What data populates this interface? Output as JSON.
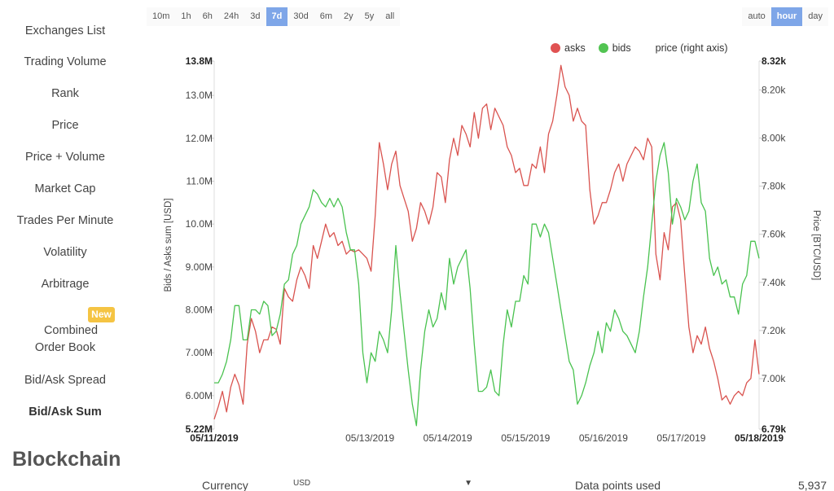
{
  "sidebar": {
    "items": [
      {
        "label": "Exchanges List"
      },
      {
        "label": "Trading Volume"
      },
      {
        "label": "Rank"
      },
      {
        "label": "Price"
      },
      {
        "label": "Price + Volume"
      },
      {
        "label": "Market Cap"
      },
      {
        "label": "Trades Per Minute"
      },
      {
        "label": "Volatility"
      },
      {
        "label": "Arbitrage"
      },
      {
        "label_line1": "Combined",
        "label_line2": "Order Book"
      },
      {
        "label": "Bid/Ask Spread"
      },
      {
        "label": "Bid/Ask Sum"
      }
    ],
    "new_badge": "New",
    "section_title": "Blockchain"
  },
  "ranges": [
    "10m",
    "1h",
    "6h",
    "24h",
    "3d",
    "7d",
    "30d",
    "6m",
    "2y",
    "5y",
    "all"
  ],
  "granularity": [
    "auto",
    "hour",
    "day"
  ],
  "controls": {
    "currency_label": "Currency",
    "currency_value": "USD",
    "points_label": "Data points used",
    "points_value": "5,937"
  },
  "colors": {
    "asks": "#d9534f",
    "bids": "#49c24f",
    "accent": "#7ea6e8"
  },
  "chart_data": {
    "type": "line",
    "ylabel": "Bids / Asks sum [USD]",
    "y2label": "Price [BTC/USD]",
    "x_ticks": [
      "05/11/2019",
      "05/13/2019",
      "05/14/2019",
      "05/15/2019",
      "05/16/2019",
      "05/17/2019",
      "05/18/2019"
    ],
    "y_ticks_left": [
      "13.8M",
      "13.0M",
      "12.0M",
      "11.0M",
      "10.0M",
      "9.00M",
      "8.00M",
      "7.00M",
      "6.00M",
      "5.22M"
    ],
    "y_ticks_right": [
      "8.32k",
      "8.20k",
      "8.00k",
      "7.80k",
      "7.60k",
      "7.40k",
      "7.20k",
      "7.00k",
      "6.79k"
    ],
    "ylim": [
      5.22,
      13.8
    ],
    "y2lim": [
      6.79,
      8.32
    ],
    "legend": {
      "position": "top-right",
      "entries": [
        "asks",
        "bids",
        "price (right axis)"
      ]
    },
    "series": [
      {
        "name": "asks",
        "values": [
          5.45,
          5.75,
          6.1,
          5.62,
          6.2,
          6.5,
          6.25,
          5.8,
          7.2,
          7.8,
          7.5,
          7.0,
          7.3,
          7.3,
          7.6,
          7.55,
          7.2,
          8.5,
          8.3,
          8.2,
          8.7,
          9.0,
          8.8,
          8.5,
          9.5,
          9.2,
          9.6,
          10.0,
          9.7,
          9.8,
          9.5,
          9.6,
          9.3,
          9.4,
          9.35,
          9.4,
          9.3,
          9.2,
          8.9,
          10.2,
          11.9,
          11.4,
          10.8,
          11.4,
          11.7,
          10.9,
          10.6,
          10.3,
          9.6,
          9.9,
          10.5,
          10.3,
          10.0,
          10.4,
          11.2,
          11.1,
          10.5,
          11.5,
          12.0,
          11.6,
          12.3,
          12.1,
          11.8,
          12.6,
          12.0,
          12.7,
          12.8,
          12.2,
          12.7,
          12.5,
          12.3,
          11.8,
          11.6,
          11.2,
          11.3,
          10.9,
          10.9,
          11.4,
          11.3,
          11.8,
          11.2,
          12.1,
          12.4,
          13.0,
          13.7,
          13.2,
          13.0,
          12.4,
          12.7,
          12.4,
          12.3,
          10.8,
          10.0,
          10.2,
          10.5,
          10.5,
          10.8,
          11.2,
          11.4,
          11.0,
          11.4,
          11.6,
          11.8,
          11.7,
          11.5,
          12.0,
          11.8,
          9.3,
          8.7,
          9.8,
          9.4,
          10.4,
          10.5,
          10.1,
          8.8,
          7.6,
          7.0,
          7.4,
          7.2,
          7.6,
          7.1,
          6.8,
          6.4,
          5.9,
          6.0,
          5.8,
          6.0,
          6.1,
          6.0,
          6.3,
          6.4,
          7.3,
          6.5
        ]
      },
      {
        "name": "bids",
        "values": [
          6.3,
          6.3,
          6.5,
          6.8,
          7.3,
          8.1,
          8.1,
          7.3,
          7.3,
          8.0,
          8.0,
          7.9,
          8.2,
          8.1,
          7.4,
          7.5,
          7.9,
          8.6,
          8.7,
          9.3,
          9.5,
          10.0,
          10.2,
          10.4,
          10.8,
          10.7,
          10.5,
          10.4,
          10.6,
          10.4,
          10.6,
          10.4,
          9.8,
          9.4,
          9.4,
          8.6,
          7.0,
          6.3,
          7.0,
          6.8,
          7.5,
          7.3,
          7.0,
          8.0,
          9.5,
          8.4,
          7.5,
          6.6,
          5.8,
          5.3,
          6.6,
          7.5,
          8.0,
          7.6,
          7.8,
          8.4,
          8.0,
          9.2,
          8.6,
          9.0,
          9.2,
          9.4,
          8.5,
          7.2,
          6.1,
          6.1,
          6.2,
          6.6,
          6.1,
          6.0,
          7.2,
          8.0,
          7.6,
          8.2,
          8.2,
          8.8,
          8.6,
          10.0,
          10.0,
          9.7,
          10.0,
          9.8,
          9.2,
          8.6,
          8.0,
          7.4,
          6.8,
          6.6,
          5.8,
          6.0,
          6.3,
          6.7,
          7.0,
          7.5,
          7.0,
          7.7,
          7.5,
          8.0,
          7.8,
          7.5,
          7.4,
          7.2,
          7.0,
          7.5,
          8.3,
          9.0,
          10.0,
          11.0,
          11.6,
          11.9,
          11.2,
          10.0,
          10.6,
          10.4,
          10.1,
          10.3,
          11.0,
          11.4,
          10.5,
          10.3,
          9.2,
          8.8,
          9.0,
          8.6,
          8.7,
          8.3,
          8.3,
          7.9,
          8.6,
          8.8,
          9.6,
          9.6,
          9.2
        ]
      }
    ]
  }
}
